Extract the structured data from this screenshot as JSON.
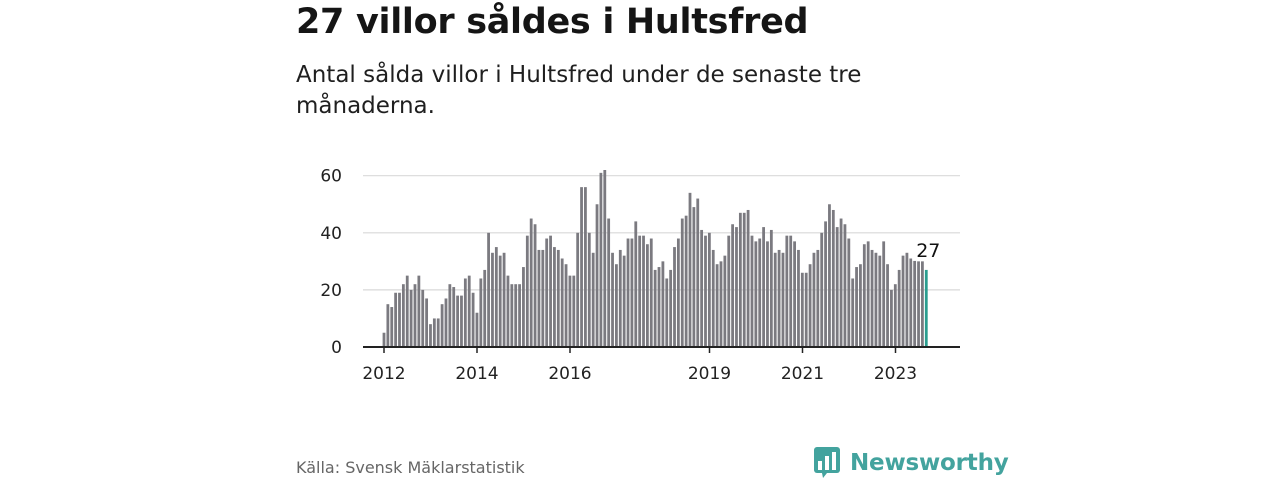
{
  "title": "27 villor såldes i Hultsfred",
  "subtitle": "Antal sålda villor i Hultsfred under de senaste tre månaderna.",
  "source": "Källa: Svensk Mäklarstatistik",
  "brand": {
    "name": "Newsworthy",
    "icon": "bar-chart-speech-bubble-icon"
  },
  "colors": {
    "bars": "#7b7a80",
    "highlight": "#2a9d8f",
    "grid": "#d9d9d9",
    "axis": "#222222",
    "brand": "#43a39e"
  },
  "chart_data": {
    "type": "bar",
    "title": "27 villor såldes i Hultsfred",
    "xlabel": "",
    "ylabel": "",
    "ylim": [
      0,
      62
    ],
    "yticks": [
      0,
      20,
      40,
      60
    ],
    "grid": true,
    "legend": "none",
    "x_start": 2012.0,
    "x_step": 0.0833,
    "xticks": [
      {
        "label": "2012",
        "x": 2012.0
      },
      {
        "label": "2014",
        "x": 2014.0
      },
      {
        "label": "2016",
        "x": 2016.0
      },
      {
        "label": "2019",
        "x": 2019.0
      },
      {
        "label": "2021",
        "x": 2021.0
      },
      {
        "label": "2023",
        "x": 2023.0
      }
    ],
    "values": [
      5,
      15,
      14,
      19,
      19,
      22,
      25,
      20,
      22,
      25,
      20,
      17,
      8,
      10,
      10,
      15,
      17,
      22,
      21,
      18,
      18,
      24,
      25,
      19,
      12,
      24,
      27,
      40,
      33,
      35,
      32,
      33,
      25,
      22,
      22,
      22,
      28,
      39,
      45,
      43,
      34,
      34,
      38,
      39,
      35,
      34,
      31,
      29,
      25,
      25,
      40,
      56,
      56,
      40,
      33,
      50,
      61,
      62,
      45,
      33,
      29,
      34,
      32,
      38,
      38,
      44,
      39,
      39,
      36,
      38,
      27,
      28,
      30,
      24,
      27,
      35,
      38,
      45,
      46,
      54,
      49,
      52,
      41,
      39,
      40,
      34,
      29,
      30,
      32,
      39,
      43,
      42,
      47,
      47,
      48,
      39,
      37,
      38,
      42,
      37,
      41,
      33,
      34,
      33,
      39,
      39,
      37,
      34,
      26,
      26,
      29,
      33,
      34,
      40,
      44,
      50,
      48,
      42,
      45,
      43,
      38,
      24,
      28,
      29,
      36,
      37,
      34,
      33,
      32,
      37,
      29,
      20,
      22,
      27,
      32,
      33,
      31,
      36,
      30,
      30,
      27
    ],
    "highlight_last": true,
    "last_label": "27"
  }
}
